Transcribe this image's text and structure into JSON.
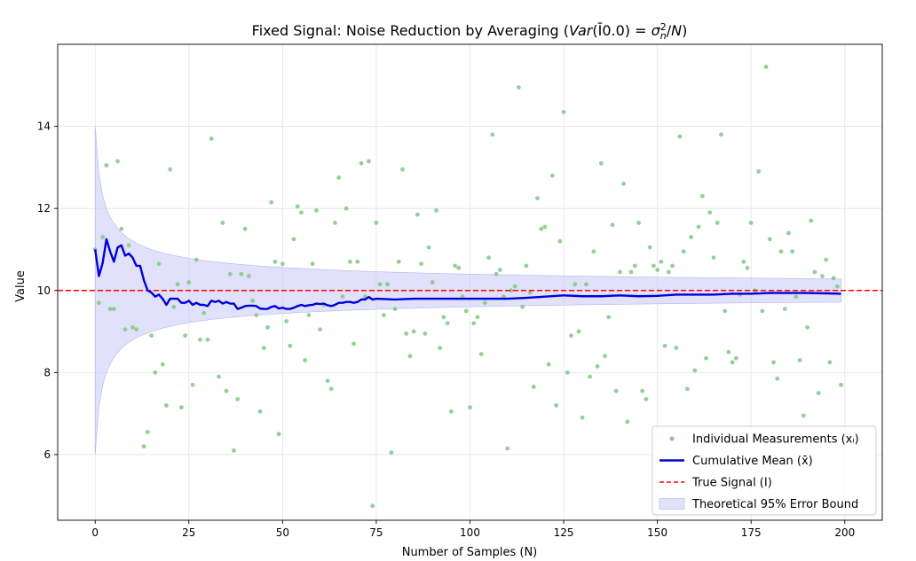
{
  "chart_data": {
    "type": "scatter+line",
    "title": "Fixed Signal: Noise Reduction by Averaging (Var(Ī0.0) = σₙ²/N)",
    "xlabel": "Number of Samples (N)",
    "ylabel": "Value",
    "xlim": [
      -10,
      210
    ],
    "ylim": [
      4.4,
      16.0
    ],
    "xticks": [
      0,
      25,
      50,
      75,
      100,
      125,
      150,
      175,
      200
    ],
    "yticks": [
      6,
      8,
      10,
      12,
      14
    ],
    "grid": true,
    "legend_position": "lower-right",
    "true_signal": 10.0,
    "bound_halfwidth_at_0": 4.0,
    "bound_last_index": 199,
    "legend": [
      {
        "key": "measurements",
        "label": "Individual Measurements (xᵢ)",
        "color": "#7fc97f"
      },
      {
        "key": "mean",
        "label": "Cumulative Mean (x̄)",
        "color": "#0000dd"
      },
      {
        "key": "signal",
        "label": "True Signal (I)",
        "color": "#ff0000"
      },
      {
        "key": "bound",
        "label": "Theoretical 95% Error Bound",
        "color": "#c8c8f8"
      }
    ],
    "measurements": [
      [
        0,
        11.0
      ],
      [
        1,
        9.7
      ],
      [
        2,
        11.3
      ],
      [
        3,
        13.05
      ],
      [
        4,
        9.55
      ],
      [
        5,
        9.55
      ],
      [
        6,
        13.15
      ],
      [
        7,
        11.5
      ],
      [
        8,
        9.05
      ],
      [
        9,
        11.1
      ],
      [
        10,
        9.1
      ],
      [
        11,
        9.05
      ],
      [
        13,
        6.2
      ],
      [
        14,
        6.55
      ],
      [
        15,
        8.9
      ],
      [
        16,
        8.0
      ],
      [
        17,
        10.65
      ],
      [
        18,
        8.2
      ],
      [
        19,
        7.2
      ],
      [
        20,
        12.95
      ],
      [
        21,
        9.6
      ],
      [
        22,
        10.15
      ],
      [
        23,
        7.15
      ],
      [
        24,
        8.9
      ],
      [
        25,
        10.2
      ],
      [
        26,
        7.7
      ],
      [
        27,
        10.75
      ],
      [
        28,
        8.8
      ],
      [
        29,
        9.45
      ],
      [
        30,
        8.8
      ],
      [
        31,
        13.7
      ],
      [
        33,
        7.9
      ],
      [
        34,
        11.65
      ],
      [
        35,
        7.55
      ],
      [
        36,
        10.4
      ],
      [
        37,
        6.1
      ],
      [
        38,
        7.35
      ],
      [
        39,
        10.4
      ],
      [
        40,
        11.5
      ],
      [
        41,
        10.35
      ],
      [
        42,
        9.75
      ],
      [
        43,
        9.4
      ],
      [
        44,
        7.05
      ],
      [
        45,
        8.6
      ],
      [
        46,
        9.1
      ],
      [
        47,
        12.15
      ],
      [
        48,
        10.7
      ],
      [
        49,
        6.5
      ],
      [
        50,
        10.65
      ],
      [
        51,
        9.25
      ],
      [
        52,
        8.65
      ],
      [
        53,
        11.25
      ],
      [
        54,
        12.05
      ],
      [
        55,
        11.9
      ],
      [
        56,
        8.3
      ],
      [
        57,
        9.4
      ],
      [
        58,
        10.65
      ],
      [
        59,
        11.95
      ],
      [
        60,
        9.05
      ],
      [
        61,
        9.65
      ],
      [
        62,
        7.8
      ],
      [
        63,
        7.6
      ],
      [
        64,
        11.65
      ],
      [
        65,
        12.75
      ],
      [
        66,
        9.85
      ],
      [
        67,
        12.0
      ],
      [
        68,
        10.7
      ],
      [
        69,
        8.7
      ],
      [
        70,
        10.7
      ],
      [
        71,
        13.1
      ],
      [
        72,
        9.85
      ],
      [
        73,
        13.15
      ],
      [
        74,
        4.75
      ],
      [
        75,
        11.65
      ],
      [
        76,
        10.15
      ],
      [
        77,
        9.4
      ],
      [
        78,
        10.15
      ],
      [
        79,
        6.05
      ],
      [
        80,
        9.55
      ],
      [
        81,
        10.7
      ],
      [
        82,
        12.95
      ],
      [
        83,
        8.95
      ],
      [
        84,
        8.4
      ],
      [
        85,
        9.0
      ],
      [
        86,
        11.85
      ],
      [
        87,
        10.65
      ],
      [
        88,
        8.95
      ],
      [
        89,
        11.05
      ],
      [
        90,
        10.2
      ],
      [
        91,
        11.95
      ],
      [
        92,
        8.6
      ],
      [
        93,
        9.35
      ],
      [
        94,
        9.2
      ],
      [
        95,
        7.05
      ],
      [
        96,
        10.6
      ],
      [
        97,
        10.55
      ],
      [
        98,
        9.85
      ],
      [
        99,
        9.5
      ],
      [
        100,
        7.15
      ],
      [
        101,
        9.2
      ],
      [
        102,
        9.35
      ],
      [
        103,
        8.45
      ],
      [
        104,
        9.7
      ],
      [
        105,
        10.8
      ],
      [
        106,
        13.8
      ],
      [
        107,
        10.4
      ],
      [
        108,
        10.5
      ],
      [
        109,
        9.85
      ],
      [
        110,
        6.15
      ],
      [
        111,
        10.0
      ],
      [
        112,
        10.1
      ],
      [
        113,
        14.95
      ],
      [
        114,
        9.6
      ],
      [
        115,
        10.6
      ],
      [
        116,
        9.95
      ],
      [
        117,
        7.65
      ],
      [
        118,
        12.25
      ],
      [
        119,
        11.5
      ],
      [
        120,
        11.55
      ],
      [
        121,
        8.2
      ],
      [
        122,
        12.8
      ],
      [
        123,
        7.2
      ],
      [
        124,
        11.2
      ],
      [
        125,
        14.35
      ],
      [
        126,
        8.0
      ],
      [
        127,
        8.9
      ],
      [
        128,
        10.15
      ],
      [
        129,
        9.0
      ],
      [
        130,
        6.9
      ],
      [
        131,
        10.15
      ],
      [
        132,
        7.9
      ],
      [
        133,
        10.95
      ],
      [
        134,
        8.15
      ],
      [
        135,
        13.1
      ],
      [
        136,
        8.4
      ],
      [
        137,
        9.35
      ],
      [
        138,
        11.6
      ],
      [
        139,
        7.55
      ],
      [
        140,
        10.45
      ],
      [
        141,
        12.6
      ],
      [
        142,
        6.8
      ],
      [
        143,
        10.45
      ],
      [
        144,
        10.6
      ],
      [
        145,
        11.65
      ],
      [
        146,
        7.55
      ],
      [
        147,
        7.35
      ],
      [
        148,
        11.05
      ],
      [
        149,
        10.6
      ],
      [
        150,
        10.5
      ],
      [
        151,
        10.7
      ],
      [
        152,
        8.65
      ],
      [
        153,
        10.45
      ],
      [
        154,
        10.6
      ],
      [
        155,
        8.6
      ],
      [
        156,
        13.75
      ],
      [
        157,
        10.95
      ],
      [
        158,
        7.6
      ],
      [
        159,
        11.3
      ],
      [
        160,
        8.05
      ],
      [
        161,
        11.55
      ],
      [
        162,
        12.3
      ],
      [
        163,
        8.35
      ],
      [
        164,
        11.9
      ],
      [
        165,
        10.8
      ],
      [
        166,
        11.65
      ],
      [
        167,
        13.8
      ],
      [
        168,
        9.5
      ],
      [
        169,
        8.5
      ],
      [
        170,
        8.25
      ],
      [
        171,
        8.35
      ],
      [
        172,
        9.9
      ],
      [
        173,
        10.7
      ],
      [
        174,
        10.55
      ],
      [
        175,
        11.65
      ],
      [
        176,
        10.0
      ],
      [
        177,
        12.9
      ],
      [
        178,
        9.5
      ],
      [
        179,
        15.45
      ],
      [
        180,
        11.25
      ],
      [
        181,
        8.25
      ],
      [
        182,
        7.85
      ],
      [
        183,
        10.95
      ],
      [
        184,
        9.55
      ],
      [
        185,
        11.4
      ],
      [
        186,
        10.95
      ],
      [
        187,
        9.85
      ],
      [
        188,
        8.3
      ],
      [
        189,
        6.95
      ],
      [
        190,
        9.1
      ],
      [
        191,
        11.7
      ],
      [
        192,
        10.45
      ],
      [
        193,
        7.5
      ],
      [
        194,
        10.35
      ],
      [
        195,
        10.75
      ],
      [
        196,
        8.25
      ],
      [
        197,
        10.3
      ],
      [
        198,
        10.1
      ],
      [
        199,
        7.7
      ]
    ],
    "cumulative_mean": [
      [
        0,
        11.0
      ],
      [
        1,
        10.35
      ],
      [
        2,
        10.67
      ],
      [
        3,
        11.25
      ],
      [
        4,
        10.95
      ],
      [
        5,
        10.7
      ],
      [
        6,
        11.05
      ],
      [
        7,
        11.1
      ],
      [
        8,
        10.85
      ],
      [
        9,
        10.9
      ],
      [
        10,
        10.8
      ],
      [
        11,
        10.6
      ],
      [
        12,
        10.6
      ],
      [
        13,
        10.25
      ],
      [
        14,
        10.0
      ],
      [
        15,
        9.95
      ],
      [
        16,
        9.85
      ],
      [
        17,
        9.9
      ],
      [
        18,
        9.8
      ],
      [
        19,
        9.65
      ],
      [
        20,
        9.8
      ],
      [
        21,
        9.8
      ],
      [
        22,
        9.8
      ],
      [
        23,
        9.7
      ],
      [
        24,
        9.7
      ],
      [
        25,
        9.75
      ],
      [
        26,
        9.65
      ],
      [
        27,
        9.7
      ],
      [
        28,
        9.65
      ],
      [
        29,
        9.65
      ],
      [
        30,
        9.62
      ],
      [
        31,
        9.75
      ],
      [
        32,
        9.72
      ],
      [
        33,
        9.75
      ],
      [
        34,
        9.68
      ],
      [
        35,
        9.72
      ],
      [
        36,
        9.68
      ],
      [
        37,
        9.68
      ],
      [
        38,
        9.55
      ],
      [
        39,
        9.58
      ],
      [
        40,
        9.62
      ],
      [
        41,
        9.63
      ],
      [
        42,
        9.63
      ],
      [
        43,
        9.62
      ],
      [
        44,
        9.56
      ],
      [
        45,
        9.55
      ],
      [
        46,
        9.55
      ],
      [
        47,
        9.6
      ],
      [
        48,
        9.62
      ],
      [
        49,
        9.56
      ],
      [
        50,
        9.58
      ],
      [
        51,
        9.55
      ],
      [
        52,
        9.55
      ],
      [
        53,
        9.58
      ],
      [
        54,
        9.62
      ],
      [
        55,
        9.65
      ],
      [
        56,
        9.62
      ],
      [
        57,
        9.64
      ],
      [
        58,
        9.65
      ],
      [
        59,
        9.68
      ],
      [
        60,
        9.67
      ],
      [
        61,
        9.68
      ],
      [
        62,
        9.64
      ],
      [
        63,
        9.62
      ],
      [
        64,
        9.65
      ],
      [
        65,
        9.7
      ],
      [
        66,
        9.7
      ],
      [
        67,
        9.72
      ],
      [
        68,
        9.72
      ],
      [
        69,
        9.7
      ],
      [
        70,
        9.72
      ],
      [
        71,
        9.78
      ],
      [
        72,
        9.78
      ],
      [
        73,
        9.84
      ],
      [
        74,
        9.78
      ],
      [
        75,
        9.8
      ],
      [
        80,
        9.78
      ],
      [
        85,
        9.8
      ],
      [
        90,
        9.8
      ],
      [
        95,
        9.8
      ],
      [
        100,
        9.8
      ],
      [
        105,
        9.8
      ],
      [
        110,
        9.8
      ],
      [
        115,
        9.82
      ],
      [
        120,
        9.85
      ],
      [
        125,
        9.88
      ],
      [
        130,
        9.86
      ],
      [
        135,
        9.86
      ],
      [
        140,
        9.88
      ],
      [
        145,
        9.86
      ],
      [
        150,
        9.87
      ],
      [
        155,
        9.9
      ],
      [
        160,
        9.9
      ],
      [
        165,
        9.9
      ],
      [
        170,
        9.92
      ],
      [
        175,
        9.92
      ],
      [
        180,
        9.94
      ],
      [
        185,
        9.94
      ],
      [
        190,
        9.94
      ],
      [
        195,
        9.93
      ],
      [
        199,
        9.92
      ]
    ]
  }
}
